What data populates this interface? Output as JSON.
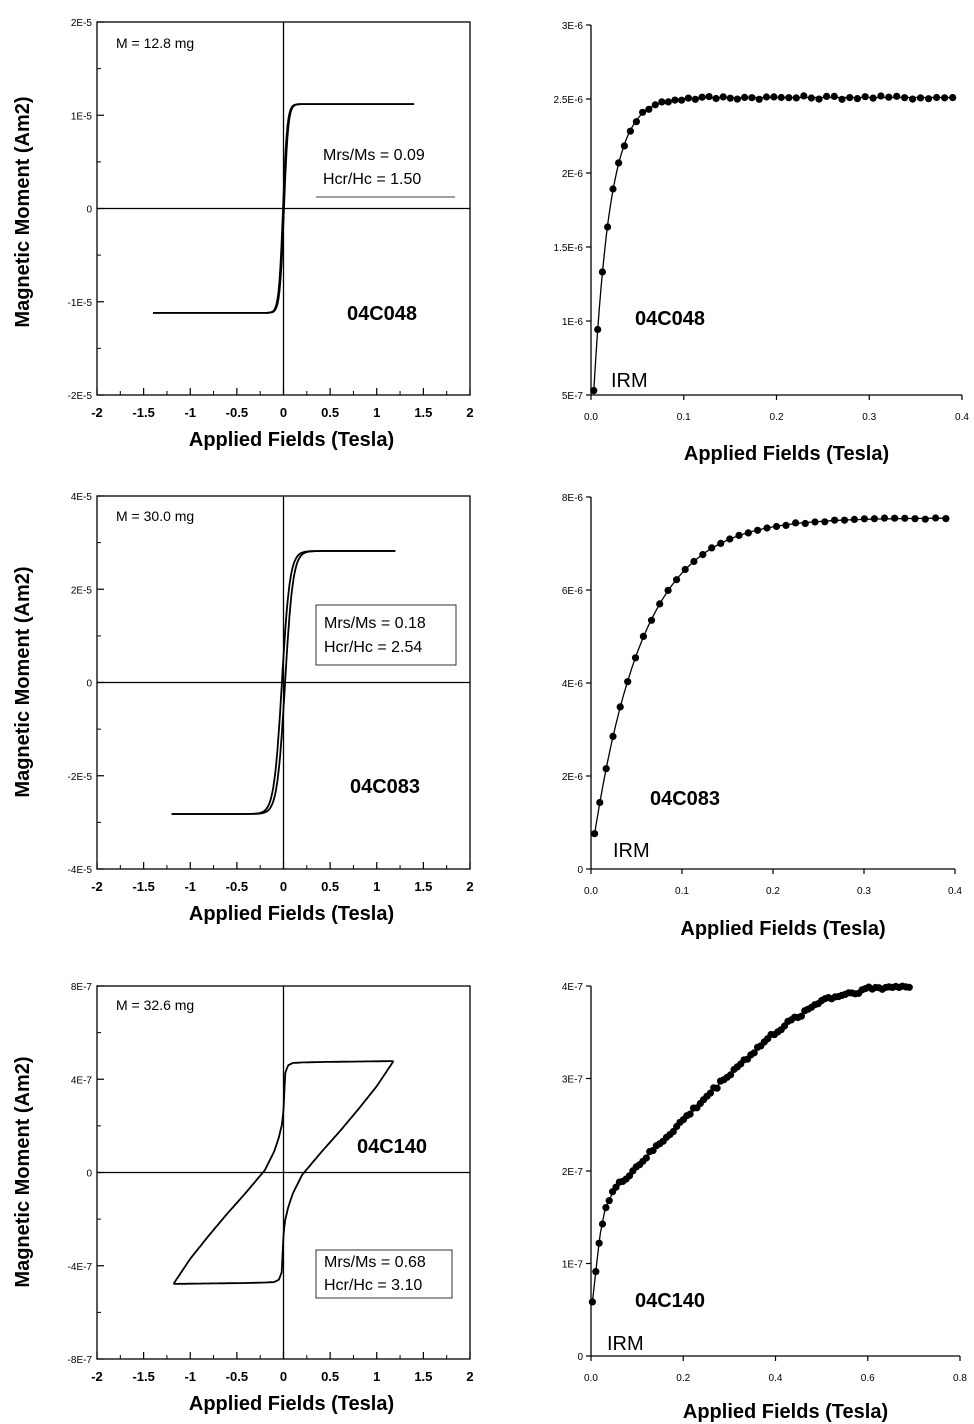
{
  "chart_data": [
    {
      "type": "line",
      "panel": "hysteresis",
      "sample": "04C048",
      "mass_label": "M = 12.8 mg",
      "ratio_lines": [
        "Mrs/Ms = 0.09",
        "Hcr/Hc = 1.50"
      ],
      "xlabel": "Applied Fields (Tesla)",
      "ylabel": "Magnetic Moment (Am2)",
      "xlim": [
        -2,
        2
      ],
      "ylim": [
        -2e-05,
        2e-05
      ],
      "x_ticks": [
        "-2",
        "-1.5",
        "-1",
        "-0.5",
        "0",
        "0.5",
        "1",
        "1.5",
        "2"
      ],
      "y_ticks": [
        "-2E-5",
        "-1E-5",
        "0",
        "1E-5",
        "2E-5"
      ],
      "ms": 1.12e-05,
      "mrs_ratio": 0.09,
      "hc": 0.005,
      "width": 0.045,
      "field_max": 1.4
    },
    {
      "type": "scatter",
      "panel": "irm",
      "sample": "04C048",
      "annotation": "IRM",
      "xlabel": "Applied Fields (Tesla)",
      "xlim": [
        0,
        0.4
      ],
      "ylim": [
        5e-07,
        3e-06
      ],
      "x_ticks": [
        "0.0",
        "0.1",
        "0.2",
        "0.3",
        "0.4"
      ],
      "y_ticks": [
        "5E-7",
        "1E-6",
        "1.5E-6",
        "2E-6",
        "2.5E-6",
        "3E-6"
      ],
      "y0": 5.3e-07,
      "ysat": 2.51e-06,
      "scale": 0.018,
      "x_start": 0.003,
      "x_end": 0.39,
      "points": 52,
      "jitter": 1.2e-08
    },
    {
      "type": "line",
      "panel": "hysteresis",
      "sample": "04C083",
      "mass_label": "M = 30.0 mg",
      "ratio_lines": [
        "Mrs/Ms = 0.18",
        "Hcr/Hc = 2.54"
      ],
      "xlabel": "Applied Fields (Tesla)",
      "ylabel": "Magnetic Moment (Am2)",
      "xlim": [
        -2,
        2
      ],
      "ylim": [
        -4e-05,
        4e-05
      ],
      "x_ticks": [
        "-2",
        "-1.5",
        "-1",
        "-0.5",
        "0",
        "0.5",
        "1",
        "1.5",
        "2"
      ],
      "y_ticks": [
        "-4E-5",
        "-2E-5",
        "0",
        "2E-5",
        "4E-5"
      ],
      "ms": 2.82e-05,
      "mrs_ratio": 0.18,
      "hc": 0.017,
      "width": 0.085,
      "field_max": 1.2
    },
    {
      "type": "scatter",
      "panel": "irm",
      "sample": "04C083",
      "annotation": "IRM",
      "xlabel": "Applied Fields (Tesla)",
      "xlim": [
        0,
        0.4
      ],
      "ylim": [
        0,
        8e-06
      ],
      "x_ticks": [
        "0.0",
        "0.1",
        "0.2",
        "0.3",
        "0.4"
      ],
      "y_ticks": [
        "0",
        "2E-6",
        "4E-6",
        "6E-6",
        "8E-6"
      ],
      "y0": 7.6e-07,
      "ysat": 7.55e-06,
      "scale": 0.055,
      "x_start": 0.004,
      "x_end": 0.39,
      "points": 40,
      "jitter": 2e-08
    },
    {
      "type": "line",
      "panel": "hysteresis",
      "sample": "04C140",
      "mass_label": "M = 32.6 mg",
      "ratio_lines": [
        "Mrs/Ms = 0.68",
        "Hcr/Hc = 3.10"
      ],
      "xlabel": "Applied Fields (Tesla)",
      "ylabel": "Magnetic Moment (Am2)",
      "xlim": [
        -2,
        2
      ],
      "ylim": [
        -8e-07,
        8e-07
      ],
      "x_ticks": [
        "-2",
        "-1.5",
        "-1",
        "-0.5",
        "0",
        "0.5",
        "1",
        "1.5",
        "2"
      ],
      "y_ticks": [
        "-8E-7",
        "-4E-7",
        "0",
        "4E-7",
        "8E-7"
      ],
      "hi_x": [
        0.0,
        0.02,
        0.05,
        0.1,
        0.2,
        0.4,
        0.6,
        0.8,
        1.0,
        1.18
      ],
      "hi_y": [
        2.7e-07,
        4.3e-07,
        4.6e-07,
        4.7e-07,
        4.72e-07,
        4.74e-07,
        4.75e-07,
        4.76e-07,
        4.77e-07,
        4.78e-07
      ],
      "lo_x": [
        1.18,
        1.0,
        0.8,
        0.6,
        0.4,
        0.2,
        0.1,
        0.05,
        0.02,
        0.0
      ],
      "lo_y": [
        4.78e-07,
        3.7e-07,
        2.7e-07,
        1.75e-07,
        8.5e-08,
        -1e-08,
        -9e-08,
        -1.5e-07,
        -2e-07,
        -2.6e-07
      ]
    },
    {
      "type": "scatter",
      "panel": "irm",
      "sample": "04C140",
      "annotation": "IRM",
      "xlabel": "Applied Fields (Tesla)",
      "xlim": [
        0,
        0.8
      ],
      "ylim": [
        0,
        4e-07
      ],
      "x_ticks": [
        "0.0",
        "0.2",
        "0.4",
        "0.6",
        "0.8"
      ],
      "y_ticks": [
        "0",
        "1E-7",
        "2E-7",
        "3E-7",
        "4E-7"
      ],
      "curve_x": [
        0.0,
        0.01,
        0.02,
        0.03,
        0.05,
        0.1,
        0.2,
        0.3,
        0.4,
        0.5,
        0.6,
        0.69
      ],
      "curve_y": [
        4.5e-08,
        9e-08,
        1.32e-07,
        1.58e-07,
        1.8e-07,
        2.05e-07,
        2.55e-07,
        3.05e-07,
        3.5e-07,
        3.85e-07,
        3.97e-07,
        4e-07
      ],
      "x_start": 0.003,
      "x_end": 0.69,
      "points": 95,
      "jitter": 2.5e-09
    }
  ]
}
